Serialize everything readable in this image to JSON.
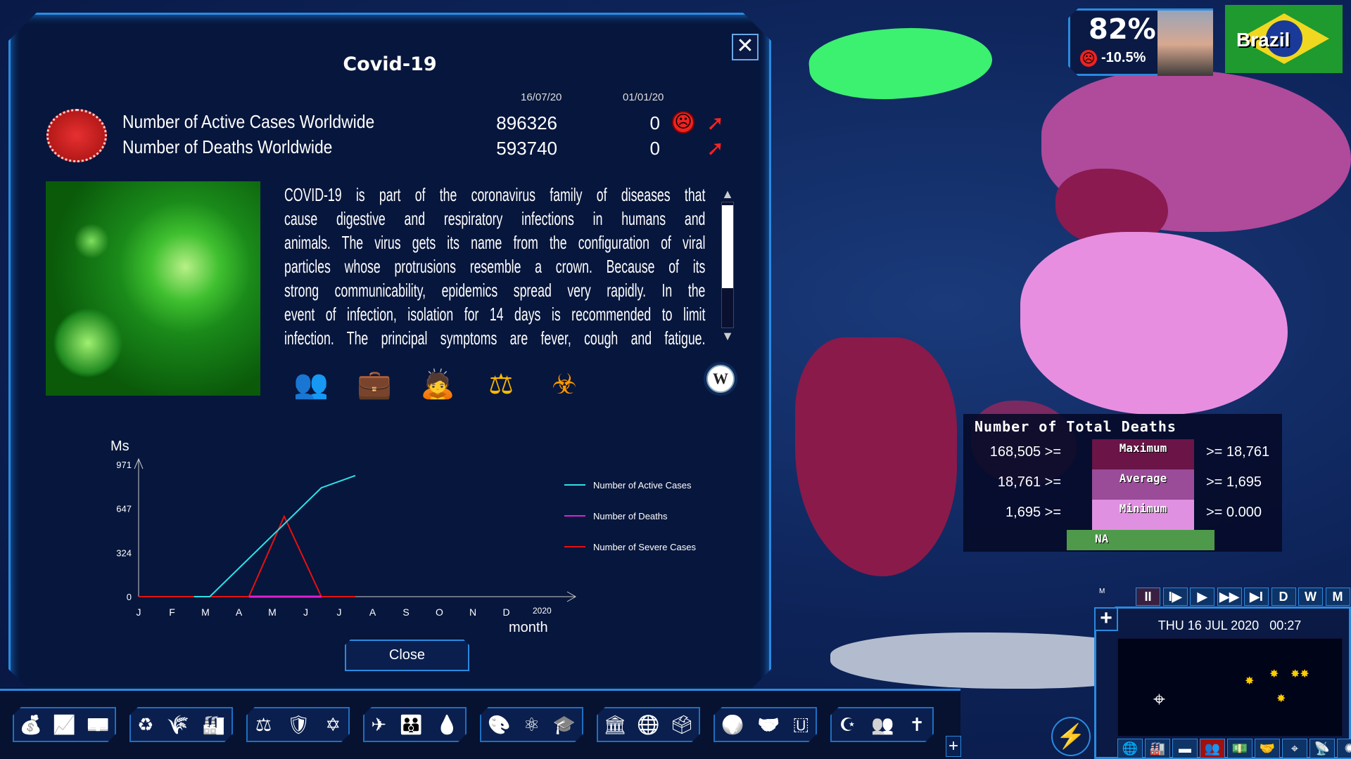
{
  "window": {
    "title": "Covid-19",
    "close_icon": "close-icon"
  },
  "stats": {
    "date_current": "16/07/20",
    "date_start": "01/01/20",
    "rows": [
      {
        "label": "Number of Active Cases Worldwide",
        "current": "896326",
        "start": "0",
        "trend": "up"
      },
      {
        "label": "Number of Deaths Worldwide",
        "current": "593740",
        "start": "0",
        "trend": "up"
      }
    ]
  },
  "description_lines": [
    "COVID-19 is part of the coronavirus family of diseases that",
    "cause digestive and respiratory infections in humans and",
    "animals. The virus gets its name from the configuration of viral",
    "particles whose protrusions resemble a crown. Because of its",
    "strong communicability, epidemics spread very rapidly. In the",
    "event of infection, isolation for 14 days is recommended to limit",
    "infection. The principal symptoms are fever, cough and fatigue."
  ],
  "effect_icons": [
    "population-icon",
    "economy-loss-icon",
    "worker-icon",
    "balance-icon",
    "biohazard-icon"
  ],
  "wiki_label": "W",
  "close_label": "Close",
  "chart_data": {
    "type": "line",
    "ylabel": "Ms",
    "xlabel": "month",
    "yticks": [
      0,
      324,
      647,
      971
    ],
    "ylim": [
      0,
      971
    ],
    "categories": [
      "J",
      "F",
      "M",
      "A",
      "M",
      "J",
      "J",
      "A",
      "S",
      "O",
      "N",
      "D"
    ],
    "year_label": "2020",
    "series": [
      {
        "name": "Number of Active Cases",
        "color": "#2ee0e8",
        "points": [
          [
            "2020-02-20",
            0
          ],
          [
            "2020-03-05",
            0
          ],
          [
            "2020-06-15",
            800
          ],
          [
            "2020-07-16",
            890
          ]
        ]
      },
      {
        "name": "Number of Deaths",
        "color": "#e020d0",
        "points": [
          [
            "2020-04-10",
            0
          ],
          [
            "2020-06-15",
            0
          ]
        ]
      },
      {
        "name": "Number of Severe Cases",
        "color": "#e81010",
        "points": [
          [
            "2020-01-01",
            0
          ],
          [
            "2020-04-10",
            0
          ],
          [
            "2020-05-12",
            590
          ],
          [
            "2020-06-15",
            0
          ],
          [
            "2020-07-16",
            0
          ]
        ]
      }
    ],
    "legend": "right"
  },
  "map_legend": {
    "title": "Number of Total Deaths",
    "rows": [
      {
        "left": "168,505 >=",
        "band": "Maximum",
        "right": ">= 18,761",
        "color": "#6a1448"
      },
      {
        "left": "18,761 >=",
        "band": "Average",
        "right": ">= 1,695",
        "color": "#9a4c98"
      },
      {
        "left": "1,695 >=",
        "band": "Minimum",
        "right": ">= 0.000",
        "color": "#e090e0"
      }
    ],
    "na_label": "NA",
    "na_color": "#4e9a4a"
  },
  "leader": {
    "approval": "82%",
    "change": "-10.5%",
    "mood": "sad"
  },
  "country": {
    "name": "Brazil"
  },
  "time": {
    "speed_label": "M",
    "controls": [
      "II",
      "I▶",
      "▶",
      "▶▶",
      "▶I",
      "D",
      "W",
      "M"
    ],
    "datetime": "THU 16 JUL 2020",
    "clock": "00:27"
  },
  "minimap_buttons": [
    "globe-icon",
    "industry-icon",
    "tank-icon",
    "protest-icon",
    "money-icon",
    "handshake-icon",
    "target-icon",
    "satellite-icon",
    "virus-icon"
  ],
  "toolbar_groups": [
    [
      "💰",
      "📈",
      "💵"
    ],
    [
      "♻",
      "🌾",
      "🏭"
    ],
    [
      "⚖",
      "🛡",
      "✡"
    ],
    [
      "✈",
      "👪",
      "💧"
    ],
    [
      "🎨",
      "⚛",
      "🎓"
    ],
    [
      "🏛",
      "🌐",
      "🗳"
    ],
    [
      "🌍",
      "🤝",
      "🇺"
    ],
    [
      "☪",
      "👥",
      "✝"
    ]
  ]
}
